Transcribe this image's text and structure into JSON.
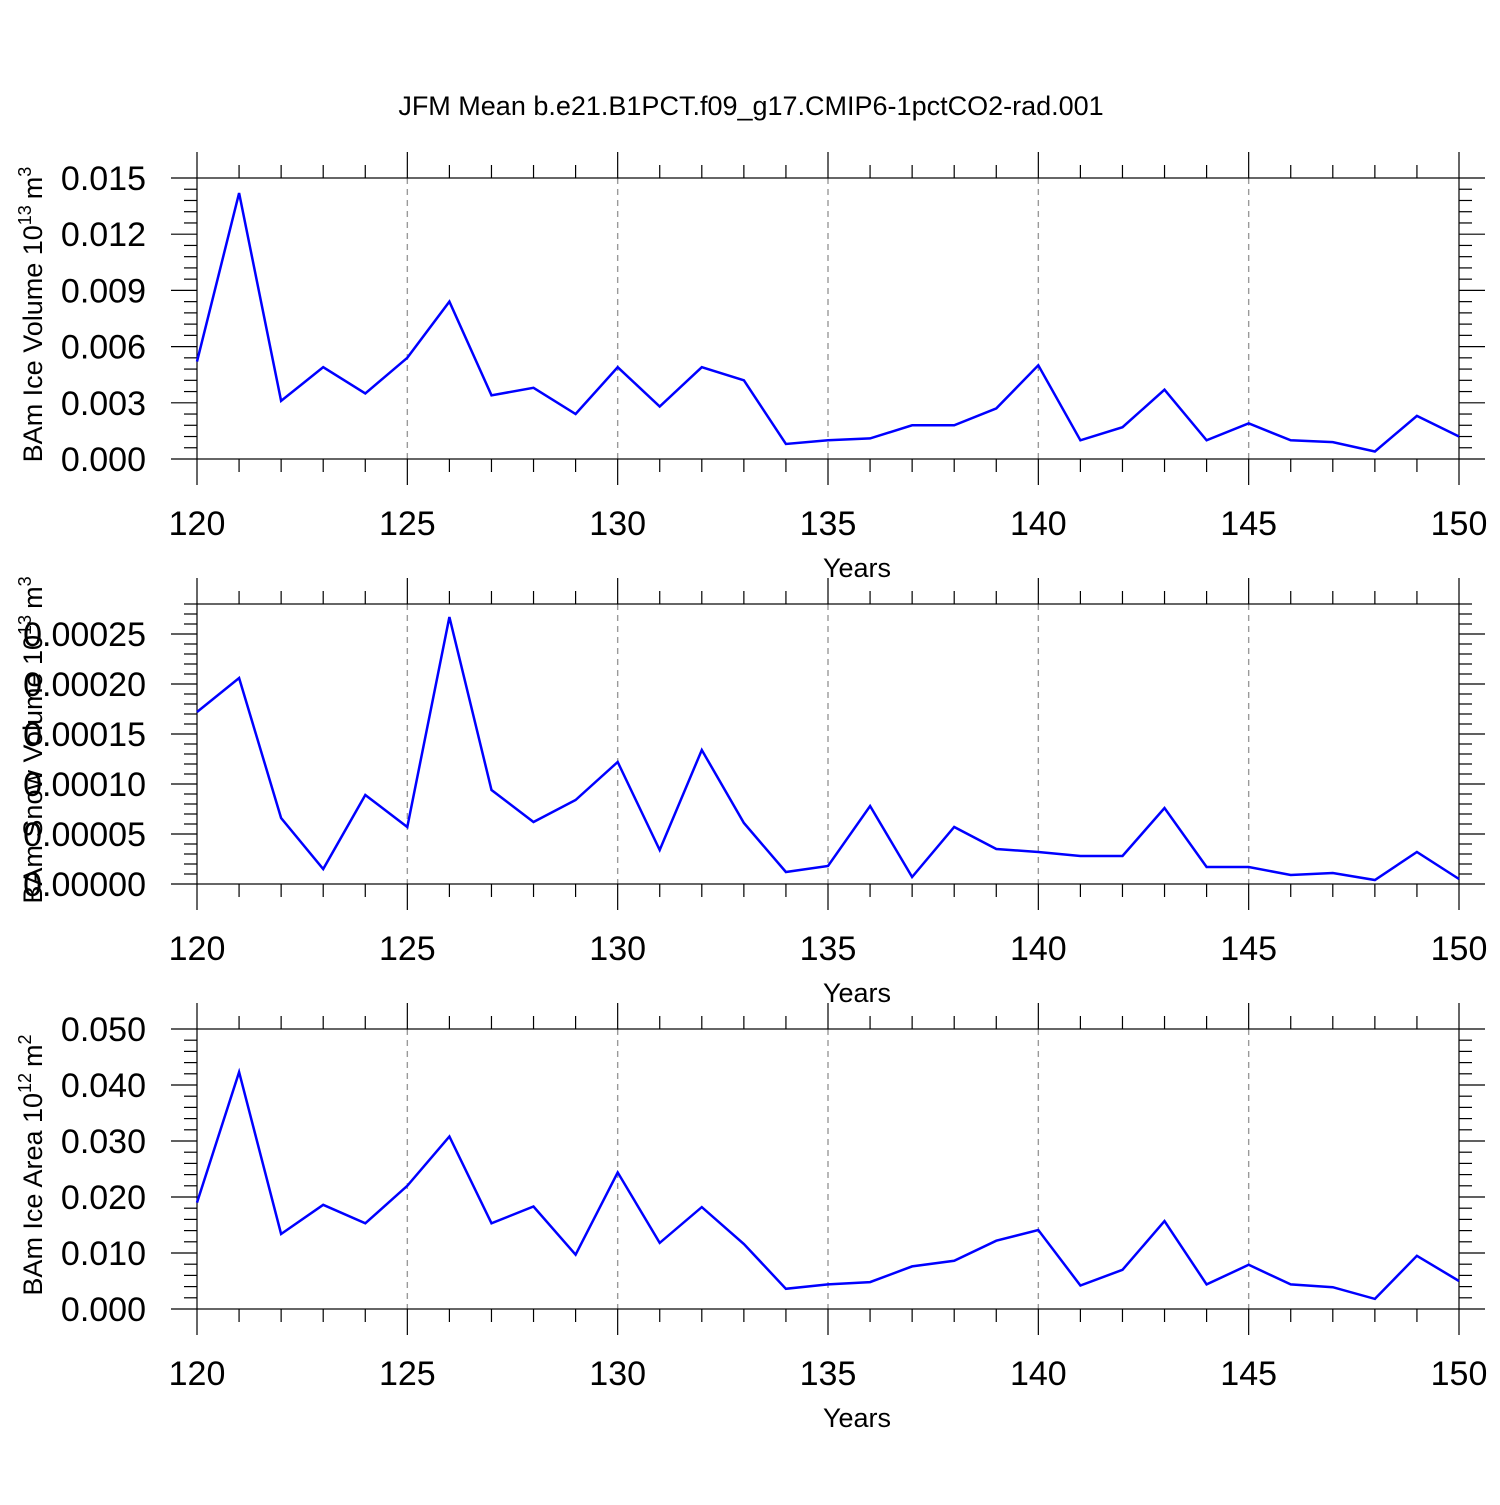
{
  "title": "JFM Mean b.e21.B1PCT.f09_g17.CMIP6-1pctCO2-rad.001",
  "chart_data": [
    {
      "type": "line",
      "ylabel": "BAm Ice Volume 10",
      "ylabel_exponent": "13",
      "ylabel_unit": "m",
      "ylabel_unit_exponent": "3",
      "xlabel": "Years",
      "xlim": [
        120,
        150
      ],
      "ylim": [
        0,
        0.015
      ],
      "xticks": [
        120,
        125,
        130,
        135,
        140,
        145,
        150
      ],
      "xtick_labels": [
        "120",
        "125",
        "130",
        "135",
        "140",
        "145",
        "150"
      ],
      "yticks": [
        0,
        0.003,
        0.006,
        0.009,
        0.012,
        0.015
      ],
      "ytick_labels": [
        "0.000",
        "0.003",
        "0.006",
        "0.009",
        "0.012",
        "0.015"
      ],
      "x_grid": true,
      "color": "#0000ff",
      "x": [
        120,
        121,
        122,
        123,
        124,
        125,
        126,
        127,
        128,
        129,
        130,
        131,
        132,
        133,
        134,
        135,
        136,
        137,
        138,
        139,
        140,
        141,
        142,
        143,
        144,
        145,
        146,
        147,
        148,
        149,
        150
      ],
      "values": [
        0.0052,
        0.0142,
        0.0031,
        0.0049,
        0.0035,
        0.0054,
        0.0084,
        0.0034,
        0.0038,
        0.0024,
        0.0049,
        0.0028,
        0.0049,
        0.0042,
        0.0008,
        0.001,
        0.0011,
        0.0018,
        0.0018,
        0.0027,
        0.005,
        0.001,
        0.0017,
        0.0037,
        0.001,
        0.0019,
        0.001,
        0.0009,
        0.0004,
        0.0023,
        0.0012
      ]
    },
    {
      "type": "line",
      "ylabel": "BAm Snow Volume 10",
      "ylabel_exponent": "13",
      "ylabel_unit": "m",
      "ylabel_unit_exponent": "3",
      "xlabel": "Years",
      "xlim": [
        120,
        150
      ],
      "ylim": [
        0,
        0.00028
      ],
      "xticks": [
        120,
        125,
        130,
        135,
        140,
        145,
        150
      ],
      "xtick_labels": [
        "120",
        "125",
        "130",
        "135",
        "140",
        "145",
        "150"
      ],
      "yticks": [
        0,
        5e-05,
        0.0001,
        0.00015,
        0.0002,
        0.00025
      ],
      "ytick_labels": [
        "0.00000",
        "0.00005",
        "0.00010",
        "0.00015",
        "0.00020",
        "0.00025"
      ],
      "x_grid": true,
      "color": "#0000ff",
      "x": [
        120,
        121,
        122,
        123,
        124,
        125,
        126,
        127,
        128,
        129,
        130,
        131,
        132,
        133,
        134,
        135,
        136,
        137,
        138,
        139,
        140,
        141,
        142,
        143,
        144,
        145,
        146,
        147,
        148,
        149,
        150
      ],
      "values": [
        0.000172,
        0.000206,
        6.6e-05,
        1.5e-05,
        8.9e-05,
        5.7e-05,
        0.000267,
        9.4e-05,
        6.2e-05,
        8.4e-05,
        0.000122,
        3.4e-05,
        0.000134,
        6.1e-05,
        1.2e-05,
        1.8e-05,
        7.8e-05,
        7e-06,
        5.7e-05,
        3.5e-05,
        3.2e-05,
        2.8e-05,
        2.8e-05,
        7.6e-05,
        1.7e-05,
        1.7e-05,
        9e-06,
        1.1e-05,
        4e-06,
        3.2e-05,
        5e-06
      ]
    },
    {
      "type": "line",
      "ylabel": "BAm Ice Area 10",
      "ylabel_exponent": "12",
      "ylabel_unit": "m",
      "ylabel_unit_exponent": "2",
      "xlabel": "Years",
      "xlim": [
        120,
        150
      ],
      "ylim": [
        0,
        0.05
      ],
      "xticks": [
        120,
        125,
        130,
        135,
        140,
        145,
        150
      ],
      "xtick_labels": [
        "120",
        "125",
        "130",
        "135",
        "140",
        "145",
        "150"
      ],
      "yticks": [
        0,
        0.01,
        0.02,
        0.03,
        0.04,
        0.05
      ],
      "ytick_labels": [
        "0.000",
        "0.010",
        "0.020",
        "0.030",
        "0.040",
        "0.050"
      ],
      "x_grid": true,
      "color": "#0000ff",
      "x": [
        120,
        121,
        122,
        123,
        124,
        125,
        126,
        127,
        128,
        129,
        130,
        131,
        132,
        133,
        134,
        135,
        136,
        137,
        138,
        139,
        140,
        141,
        142,
        143,
        144,
        145,
        146,
        147,
        148,
        149,
        150
      ],
      "values": [
        0.019,
        0.0423,
        0.0134,
        0.0186,
        0.0153,
        0.022,
        0.0308,
        0.0153,
        0.0183,
        0.0097,
        0.0244,
        0.0118,
        0.0182,
        0.0116,
        0.0036,
        0.0044,
        0.0048,
        0.0076,
        0.0086,
        0.0122,
        0.0141,
        0.0042,
        0.007,
        0.0157,
        0.0044,
        0.0079,
        0.0044,
        0.0039,
        0.0018,
        0.0095,
        0.005
      ]
    }
  ]
}
